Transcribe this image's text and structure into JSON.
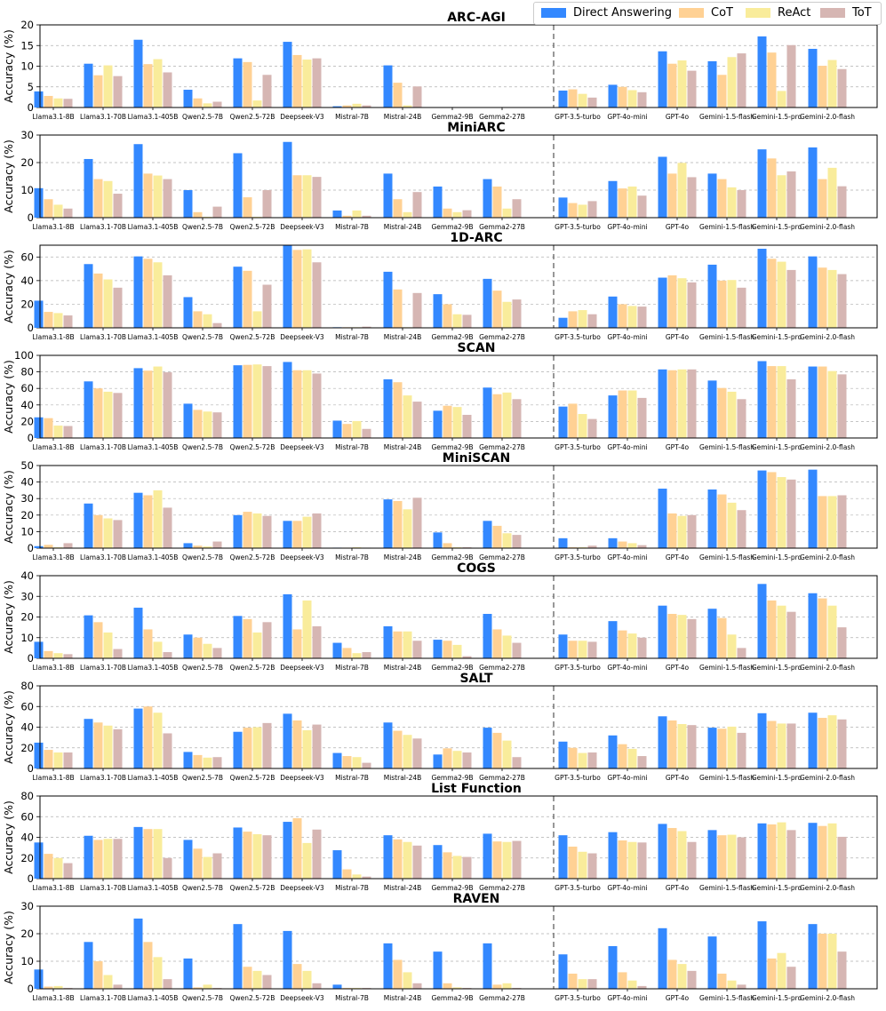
{
  "legend": {
    "position": "top-right",
    "entries": [
      {
        "name": "Direct Answering",
        "color": "#3388ff"
      },
      {
        "name": "CoT",
        "color": "#ffd194"
      },
      {
        "name": "ReAct",
        "color": "#f9ec9b"
      },
      {
        "name": "ToT",
        "color": "#d6b6b3"
      }
    ]
  },
  "chart_data": [
    {
      "type": "bar",
      "title": "ARC-AGI",
      "ylabel": "Accuracy (%)",
      "ylim": [
        0,
        20
      ],
      "yticks": [
        0,
        5,
        10,
        15,
        20
      ],
      "grid": true,
      "categories": [
        "Llama3.1-8B",
        "Llama3.1-70B",
        "Llama3.1-405B",
        "Qwen2.5-7B",
        "Qwen2.5-72B",
        "Deepseek-V3",
        "Mistral-7B",
        "Mistral-24B",
        "Gemma2-9B",
        "Gemma2-27B",
        "GPT-3.5-turbo",
        "GPT-4o-mini",
        "GPT-4o",
        "Gemini-1.5-flash",
        "Gemini-1.5-pro",
        "Gemini-2.0-flash"
      ],
      "series": [
        {
          "name": "Direct Answering",
          "values": [
            3.9,
            10.6,
            16.4,
            4.3,
            11.9,
            15.9,
            0.3,
            10.2,
            0,
            0,
            4.1,
            5.5,
            13.6,
            11.2,
            17.2,
            14.2
          ]
        },
        {
          "name": "CoT",
          "values": [
            2.8,
            7.8,
            10.5,
            2.2,
            11.0,
            12.7,
            0.5,
            6.0,
            0,
            0,
            4.4,
            5.0,
            10.6,
            7.9,
            13.3,
            10.1
          ]
        },
        {
          "name": "ReAct",
          "values": [
            2.2,
            10.2,
            11.7,
            1.0,
            1.7,
            11.6,
            0.9,
            0.5,
            0,
            0,
            3.3,
            4.2,
            11.4,
            12.2,
            4.0,
            11.5
          ]
        },
        {
          "name": "ToT",
          "values": [
            2.1,
            7.6,
            8.5,
            1.4,
            7.9,
            11.9,
            0.5,
            5.1,
            0,
            0,
            2.4,
            3.7,
            8.9,
            13.1,
            15.1,
            9.3
          ]
        }
      ]
    },
    {
      "type": "bar",
      "title": "MiniARC",
      "ylabel": "Accuracy (%)",
      "ylim": [
        0,
        30
      ],
      "yticks": [
        0,
        10,
        20,
        30
      ],
      "grid": true,
      "categories": [
        "Llama3.1-8B",
        "Llama3.1-70B",
        "Llama3.1-405B",
        "Qwen2.5-7B",
        "Qwen2.5-72B",
        "Deepseek-V3",
        "Mistral-7B",
        "Mistral-24B",
        "Gemma2-9B",
        "Gemma2-27B",
        "GPT-3.5-turbo",
        "GPT-4o-mini",
        "GPT-4o",
        "Gemini-1.5-flash",
        "Gemini-1.5-pro",
        "Gemini-2.0-flash"
      ],
      "series": [
        {
          "name": "Direct Answering",
          "values": [
            10.7,
            21.3,
            26.7,
            10.0,
            23.4,
            27.5,
            2.6,
            16.0,
            11.3,
            14.0,
            7.3,
            13.3,
            22.1,
            16.0,
            24.8,
            25.5
          ]
        },
        {
          "name": "CoT",
          "values": [
            6.7,
            14.0,
            16.0,
            2.0,
            7.4,
            15.4,
            0.7,
            6.7,
            3.3,
            11.3,
            5.3,
            10.6,
            16.0,
            14.0,
            21.5,
            14.0
          ]
        },
        {
          "name": "ReAct",
          "values": [
            4.7,
            13.3,
            15.3,
            0.3,
            0.3,
            15.4,
            2.6,
            2.0,
            2.0,
            3.3,
            4.7,
            11.3,
            19.9,
            11.0,
            15.4,
            18.1
          ]
        },
        {
          "name": "ToT",
          "values": [
            3.3,
            8.7,
            14.0,
            4.0,
            10.0,
            14.8,
            0.7,
            9.3,
            2.7,
            6.7,
            6.0,
            8.0,
            14.7,
            10.0,
            16.8,
            11.4
          ]
        }
      ]
    },
    {
      "type": "bar",
      "title": "1D-ARC",
      "ylabel": "Accuracy (%)",
      "ylim": [
        0,
        70
      ],
      "yticks": [
        0,
        20,
        40,
        60
      ],
      "grid": true,
      "categories": [
        "Llama3.1-8B",
        "Llama3.1-70B",
        "Llama3.1-405B",
        "Qwen2.5-7B",
        "Qwen2.5-72B",
        "Deepseek-V3",
        "Mistral-7B",
        "Mistral-24B",
        "Gemma2-9B",
        "Gemma2-27B",
        "GPT-3.5-turbo",
        "GPT-4o-mini",
        "GPT-4o",
        "Gemini-1.5-flash",
        "Gemini-1.5-pro",
        "Gemini-2.0-flash"
      ],
      "series": [
        {
          "name": "Direct Answering",
          "values": [
            23.0,
            54.0,
            60.5,
            26.0,
            51.8,
            69.7,
            0.5,
            47.5,
            28.5,
            41.5,
            8.5,
            26.5,
            42.5,
            53.5,
            67.0,
            60.5
          ]
        },
        {
          "name": "CoT",
          "values": [
            13.5,
            46.0,
            58.5,
            14.0,
            48.3,
            66.0,
            0.5,
            32.5,
            20.0,
            31.5,
            14.0,
            20.0,
            44.5,
            40.0,
            58.5,
            51.0
          ]
        },
        {
          "name": "ReAct",
          "values": [
            12.5,
            41.0,
            55.5,
            11.5,
            14.0,
            66.5,
            0.5,
            0.5,
            11.5,
            22.0,
            15.0,
            18.5,
            42.0,
            40.5,
            56.0,
            49.0
          ]
        },
        {
          "name": "ToT",
          "values": [
            10.5,
            34.0,
            44.5,
            4.0,
            36.5,
            55.5,
            1.0,
            29.5,
            11.0,
            24.0,
            11.5,
            18.0,
            38.5,
            34.0,
            49.0,
            45.5
          ]
        }
      ]
    },
    {
      "type": "bar",
      "title": "SCAN",
      "ylabel": "Accuracy (%)",
      "ylim": [
        0,
        100
      ],
      "yticks": [
        0,
        20,
        40,
        60,
        80,
        100
      ],
      "grid": true,
      "categories": [
        "Llama3.1-8B",
        "Llama3.1-70B",
        "Llama3.1-405B",
        "Qwen2.5-7B",
        "Qwen2.5-72B",
        "Deepseek-V3",
        "Mistral-7B",
        "Mistral-24B",
        "Gemma2-9B",
        "Gemma2-27B",
        "GPT-3.5-turbo",
        "GPT-4o-mini",
        "GPT-4o",
        "Gemini-1.5-flash",
        "Gemini-1.5-pro",
        "Gemini-2.0-flash"
      ],
      "series": [
        {
          "name": "Direct Answering",
          "values": [
            25.0,
            68.5,
            84.5,
            41.5,
            88.0,
            92.0,
            21.0,
            71.0,
            33.0,
            61.0,
            38.0,
            51.5,
            83.0,
            69.5,
            93.0,
            86.5
          ]
        },
        {
          "name": "CoT",
          "values": [
            24.0,
            60.0,
            81.5,
            34.0,
            88.5,
            82.0,
            17.0,
            67.5,
            39.0,
            53.0,
            41.5,
            57.5,
            82.0,
            60.5,
            87.0,
            86.5
          ]
        },
        {
          "name": "ReAct",
          "values": [
            15.0,
            56.0,
            86.5,
            32.0,
            89.0,
            82.0,
            20.5,
            51.5,
            37.5,
            55.0,
            29.0,
            57.5,
            83.0,
            56.0,
            87.0,
            81.0
          ]
        },
        {
          "name": "ToT",
          "values": [
            14.5,
            54.5,
            79.5,
            31.0,
            87.0,
            78.0,
            11.0,
            44.0,
            28.0,
            47.0,
            23.0,
            48.5,
            83.0,
            47.0,
            71.0,
            77.0
          ]
        }
      ]
    },
    {
      "type": "bar",
      "title": "MiniSCAN",
      "ylabel": "Accuracy (%)",
      "ylim": [
        0,
        50
      ],
      "yticks": [
        0,
        10,
        20,
        30,
        40,
        50
      ],
      "grid": true,
      "categories": [
        "Llama3.1-8B",
        "Llama3.1-70B",
        "Llama3.1-405B",
        "Qwen2.5-7B",
        "Qwen2.5-72B",
        "Deepseek-V3",
        "Mistral-7B",
        "Mistral-24B",
        "Gemma2-9B",
        "Gemma2-27B",
        "GPT-3.5-turbo",
        "GPT-4o-mini",
        "GPT-4o",
        "Gemini-1.5-flash",
        "Gemini-1.5-pro",
        "Gemini-2.0-flash"
      ],
      "series": [
        {
          "name": "Direct Answering",
          "values": [
            1.2,
            27.0,
            33.5,
            3.0,
            20.0,
            16.5,
            0.3,
            29.5,
            9.5,
            16.5,
            6.0,
            6.0,
            36.0,
            35.5,
            47.0,
            47.5
          ]
        },
        {
          "name": "CoT",
          "values": [
            2.0,
            20.0,
            32.0,
            1.5,
            22.0,
            16.5,
            0.3,
            28.5,
            3.0,
            13.5,
            0.5,
            4.0,
            21.0,
            32.5,
            46.0,
            31.5
          ]
        },
        {
          "name": "ReAct",
          "values": [
            0.5,
            18.0,
            35.0,
            1.0,
            21.0,
            19.0,
            0.5,
            23.5,
            0.5,
            9.0,
            0.5,
            3.0,
            19.5,
            27.5,
            43.0,
            31.5
          ]
        },
        {
          "name": "ToT",
          "values": [
            3.0,
            17.0,
            24.5,
            4.0,
            19.5,
            21.0,
            0.3,
            30.5,
            0.5,
            8.0,
            1.5,
            1.8,
            20.0,
            23.0,
            41.5,
            32.0
          ]
        }
      ]
    },
    {
      "type": "bar",
      "title": "COGS",
      "ylabel": "Accuracy (%)",
      "ylim": [
        0,
        40
      ],
      "yticks": [
        0,
        10,
        20,
        30,
        40
      ],
      "grid": true,
      "categories": [
        "Llama3.1-8B",
        "Llama3.1-70B",
        "Llama3.1-405B",
        "Qwen2.5-7B",
        "Qwen2.5-72B",
        "Deepseek-V3",
        "Mistral-7B",
        "Mistral-24B",
        "Gemma2-9B",
        "Gemma2-27B",
        "GPT-3.5-turbo",
        "GPT-4o-mini",
        "GPT-4o",
        "Gemini-1.5-flash",
        "Gemini-1.5-pro",
        "Gemini-2.0-flash"
      ],
      "series": [
        {
          "name": "Direct Answering",
          "values": [
            8.0,
            20.8,
            24.5,
            11.5,
            20.5,
            31.0,
            7.5,
            15.5,
            9.0,
            21.5,
            11.5,
            18.0,
            25.5,
            24.0,
            36.0,
            31.5
          ]
        },
        {
          "name": "CoT",
          "values": [
            3.5,
            17.5,
            14.0,
            10.0,
            19.0,
            14.0,
            5.0,
            13.0,
            8.5,
            14.0,
            8.5,
            13.5,
            21.5,
            19.5,
            28.0,
            29.0
          ]
        },
        {
          "name": "ReAct",
          "values": [
            2.5,
            12.5,
            8.0,
            7.0,
            12.5,
            28.0,
            2.5,
            13.0,
            6.5,
            11.0,
            8.5,
            12.0,
            21.0,
            11.5,
            25.5,
            25.5
          ]
        },
        {
          "name": "ToT",
          "values": [
            2.0,
            4.5,
            3.0,
            5.0,
            17.5,
            15.5,
            3.0,
            8.5,
            1.0,
            7.5,
            8.0,
            10.0,
            19.0,
            5.0,
            22.5,
            15.0
          ]
        }
      ]
    },
    {
      "type": "bar",
      "title": "SALT",
      "ylabel": "Accuracy (%)",
      "ylim": [
        0,
        80
      ],
      "yticks": [
        0,
        20,
        40,
        60,
        80
      ],
      "grid": true,
      "categories": [
        "Llama3.1-8B",
        "Llama3.1-70B",
        "Llama3.1-405B",
        "Qwen2.5-7B",
        "Qwen2.5-72B",
        "Deepseek-V3",
        "Mistral-7B",
        "Mistral-24B",
        "Gemma2-9B",
        "Gemma2-27B",
        "GPT-3.5-turbo",
        "GPT-4o-mini",
        "GPT-4o",
        "Gemini-1.5-flash",
        "Gemini-1.5-pro",
        "Gemini-2.0-flash"
      ],
      "series": [
        {
          "name": "Direct Answering",
          "values": [
            25.0,
            48.0,
            58.0,
            16.0,
            35.5,
            53.0,
            15.0,
            44.5,
            13.5,
            39.5,
            26.0,
            32.0,
            50.5,
            39.5,
            53.5,
            54.0
          ]
        },
        {
          "name": "CoT",
          "values": [
            18.0,
            44.5,
            60.0,
            13.0,
            39.5,
            46.5,
            12.0,
            36.5,
            19.5,
            34.5,
            20.0,
            23.5,
            46.5,
            38.5,
            46.0,
            49.0
          ]
        },
        {
          "name": "ReAct",
          "values": [
            15.5,
            41.5,
            54.0,
            10.5,
            40.0,
            37.0,
            11.0,
            32.5,
            17.0,
            27.0,
            15.0,
            19.0,
            43.0,
            40.5,
            43.5,
            51.5
          ]
        },
        {
          "name": "ToT",
          "values": [
            15.5,
            38.0,
            34.0,
            11.0,
            44.0,
            42.5,
            5.5,
            29.0,
            15.5,
            11.0,
            15.5,
            12.0,
            42.0,
            34.5,
            43.5,
            47.5
          ]
        }
      ]
    },
    {
      "type": "bar",
      "title": "List Function",
      "ylabel": "Accuracy (%)",
      "ylim": [
        0,
        80
      ],
      "yticks": [
        0,
        20,
        40,
        60,
        80
      ],
      "grid": true,
      "categories": [
        "Llama3.1-8B",
        "Llama3.1-70B",
        "Llama3.1-405B",
        "Qwen2.5-7B",
        "Qwen2.5-72B",
        "Deepseek-V3",
        "Mistral-7B",
        "Mistral-24B",
        "Gemma2-9B",
        "Gemma2-27B",
        "GPT-3.5-turbo",
        "GPT-4o-mini",
        "GPT-4o",
        "Gemini-1.5-flash",
        "Gemini-1.5-pro",
        "Gemini-2.0-flash"
      ],
      "series": [
        {
          "name": "Direct Answering",
          "values": [
            35.0,
            41.5,
            50.0,
            37.5,
            49.5,
            55.0,
            27.5,
            42.0,
            32.5,
            43.5,
            42.0,
            45.0,
            53.0,
            47.0,
            53.5,
            54.0
          ]
        },
        {
          "name": "CoT",
          "values": [
            24.0,
            37.5,
            48.0,
            29.0,
            45.5,
            58.5,
            9.0,
            38.0,
            25.5,
            36.0,
            31.0,
            37.0,
            49.0,
            42.0,
            52.5,
            51.0
          ]
        },
        {
          "name": "ReAct",
          "values": [
            20.0,
            38.5,
            48.0,
            21.0,
            43.0,
            34.5,
            4.0,
            35.5,
            22.0,
            35.5,
            26.0,
            35.5,
            46.0,
            42.5,
            54.5,
            53.5
          ]
        },
        {
          "name": "ToT",
          "values": [
            15.0,
            38.5,
            20.0,
            24.5,
            42.0,
            47.5,
            2.0,
            32.0,
            21.0,
            36.5,
            24.5,
            35.0,
            35.5,
            40.0,
            47.0,
            40.5
          ]
        }
      ]
    },
    {
      "type": "bar",
      "title": "RAVEN",
      "ylabel": "Accuracy (%)",
      "ylim": [
        0,
        30
      ],
      "yticks": [
        0,
        10,
        20,
        30
      ],
      "grid": true,
      "categories": [
        "Llama3.1-8B",
        "Llama3.1-70B",
        "Llama3.1-405B",
        "Qwen2.5-7B",
        "Qwen2.5-72B",
        "Deepseek-V3",
        "Mistral-7B",
        "Mistral-24B",
        "Gemma2-9B",
        "Gemma2-27B",
        "GPT-3.5-turbo",
        "GPT-4o-mini",
        "GPT-4o",
        "Gemini-1.5-flash",
        "Gemini-1.5-pro",
        "Gemini-2.0-flash"
      ],
      "series": [
        {
          "name": "Direct Answering",
          "values": [
            7.0,
            17.0,
            25.5,
            11.0,
            23.5,
            21.0,
            1.5,
            16.5,
            13.5,
            16.5,
            12.5,
            15.5,
            22.0,
            19.0,
            24.5,
            23.5
          ]
        },
        {
          "name": "CoT",
          "values": [
            0.8,
            10.0,
            17.0,
            0.5,
            8.0,
            9.0,
            0.3,
            10.5,
            2.0,
            1.5,
            5.5,
            6.0,
            10.5,
            5.5,
            11.0,
            20.0
          ]
        },
        {
          "name": "ReAct",
          "values": [
            1.0,
            5.0,
            11.5,
            1.5,
            6.5,
            6.5,
            0.3,
            6.0,
            0.5,
            2.0,
            3.5,
            3.0,
            9.0,
            3.0,
            13.0,
            20.0
          ]
        },
        {
          "name": "ToT",
          "values": [
            0.3,
            1.5,
            3.5,
            0.3,
            5.0,
            2.0,
            0.3,
            2.0,
            0.3,
            0.3,
            3.5,
            1.0,
            6.5,
            1.5,
            8.0,
            13.5
          ]
        }
      ]
    }
  ]
}
